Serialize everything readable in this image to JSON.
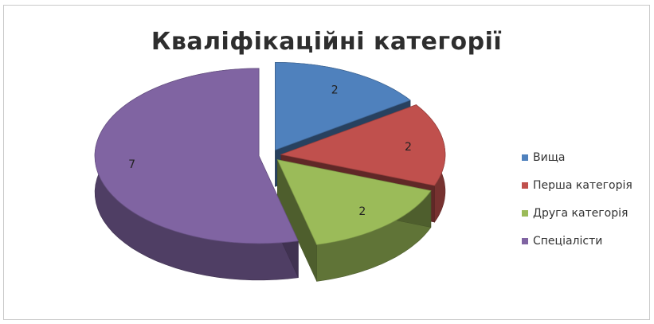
{
  "chart_data": {
    "type": "pie",
    "title": "Кваліфікаційні  категорії",
    "categories": [
      "Вища",
      "Перша категорія",
      "Друга категорія",
      "Спеціалісти"
    ],
    "values": [
      2,
      2,
      2,
      7
    ],
    "data_labels": [
      "2",
      "2",
      "2",
      "7"
    ],
    "colors": [
      "#4f81bd",
      "#c0504d",
      "#9bbb59",
      "#8064a2"
    ],
    "exploded": true,
    "three_d": true,
    "legend_position": "right"
  }
}
